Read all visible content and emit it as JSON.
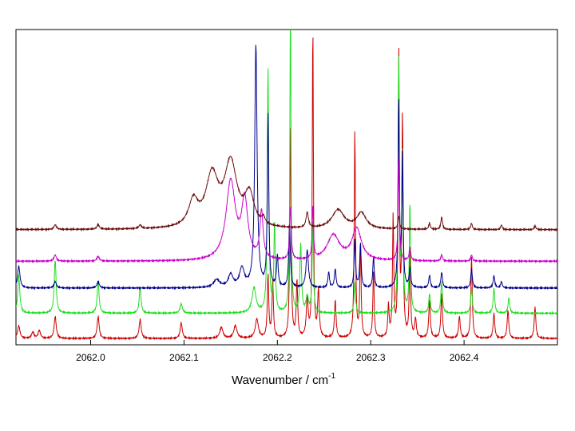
{
  "chart_data": {
    "type": "line",
    "title": "",
    "xlabel": "Wavenumber / cm",
    "xlabel_superscript": "-1",
    "ylabel": "",
    "xlim": [
      2061.92,
      2062.5
    ],
    "ylim": [
      0,
      1
    ],
    "xticks": [
      2062.0,
      2062.1,
      2062.2,
      2062.3,
      2062.4
    ],
    "xtick_labels": [
      "2062.0",
      "2062.1",
      "2062.2",
      "2062.3",
      "2062.4"
    ],
    "grid": false,
    "legend": "none",
    "series": [
      {
        "color": "#cc0000",
        "baseline": 0.02,
        "peaks": [
          [
            2061.923,
            0.04,
            0.0015
          ],
          [
            2061.938,
            0.02,
            0.0015
          ],
          [
            2061.945,
            0.025,
            0.0015
          ],
          [
            2061.962,
            0.07,
            0.0013
          ],
          [
            2062.008,
            0.07,
            0.0013
          ],
          [
            2062.053,
            0.06,
            0.0013
          ],
          [
            2062.097,
            0.05,
            0.0013
          ],
          [
            2062.14,
            0.035,
            0.002
          ],
          [
            2062.155,
            0.04,
            0.002
          ],
          [
            2062.178,
            0.06,
            0.002
          ],
          [
            2062.19,
            0.2,
            0.0009
          ],
          [
            2062.195,
            0.18,
            0.0009
          ],
          [
            2062.214,
            0.68,
            0.0008
          ],
          [
            2062.221,
            0.18,
            0.0009
          ],
          [
            2062.232,
            0.12,
            0.0012
          ],
          [
            2062.238,
            1.0,
            0.0007
          ],
          [
            2062.244,
            0.15,
            0.001
          ],
          [
            2062.262,
            0.12,
            0.001
          ],
          [
            2062.283,
            0.66,
            0.0008
          ],
          [
            2062.289,
            0.3,
            0.0008
          ],
          [
            2062.303,
            0.22,
            0.0008
          ],
          [
            2062.319,
            0.1,
            0.0008
          ],
          [
            2062.324,
            0.38,
            0.0008
          ],
          [
            2062.33,
            0.92,
            0.0007
          ],
          [
            2062.334,
            0.7,
            0.0008
          ],
          [
            2062.342,
            0.28,
            0.0008
          ],
          [
            2062.348,
            0.06,
            0.001
          ],
          [
            2062.363,
            0.12,
            0.001
          ],
          [
            2062.376,
            0.14,
            0.001
          ],
          [
            2062.395,
            0.07,
            0.001
          ],
          [
            2062.408,
            0.26,
            0.0009
          ],
          [
            2062.432,
            0.08,
            0.001
          ],
          [
            2062.447,
            0.09,
            0.001
          ],
          [
            2062.476,
            0.1,
            0.001
          ]
        ]
      },
      {
        "color": "#22dd22",
        "baseline": 0.1,
        "peaks": [
          [
            2061.923,
            0.12,
            0.0013
          ],
          [
            2061.962,
            0.17,
            0.0012
          ],
          [
            2062.008,
            0.1,
            0.0012
          ],
          [
            2062.053,
            0.08,
            0.0012
          ],
          [
            2062.097,
            0.03,
            0.0015
          ],
          [
            2062.175,
            0.08,
            0.0025
          ],
          [
            2062.19,
            0.78,
            0.0009
          ],
          [
            2062.197,
            0.28,
            0.0009
          ],
          [
            2062.214,
            1.0,
            0.0007
          ],
          [
            2062.225,
            0.22,
            0.001
          ],
          [
            2062.232,
            0.05,
            0.0015
          ],
          [
            2062.238,
            0.3,
            0.0008
          ],
          [
            2062.283,
            0.1,
            0.0009
          ],
          [
            2062.33,
            0.82,
            0.0008
          ],
          [
            2062.334,
            0.5,
            0.0008
          ],
          [
            2062.342,
            0.35,
            0.0008
          ],
          [
            2062.363,
            0.06,
            0.001
          ],
          [
            2062.376,
            0.1,
            0.001
          ],
          [
            2062.408,
            0.08,
            0.001
          ],
          [
            2062.432,
            0.08,
            0.001
          ],
          [
            2062.448,
            0.05,
            0.001
          ]
        ]
      },
      {
        "color": "#00008b",
        "baseline": 0.18,
        "peaks": [
          [
            2061.923,
            0.07,
            0.0015
          ],
          [
            2061.962,
            0.02,
            0.0015
          ],
          [
            2062.008,
            0.02,
            0.0015
          ],
          [
            2062.135,
            0.025,
            0.004
          ],
          [
            2062.15,
            0.04,
            0.003
          ],
          [
            2062.162,
            0.06,
            0.003
          ],
          [
            2062.177,
            0.77,
            0.0015
          ],
          [
            2062.19,
            0.55,
            0.0009
          ],
          [
            2062.2,
            0.1,
            0.001
          ],
          [
            2062.213,
            0.2,
            0.001
          ],
          [
            2062.232,
            0.12,
            0.0015
          ],
          [
            2062.255,
            0.05,
            0.001
          ],
          [
            2062.262,
            0.06,
            0.001
          ],
          [
            2062.283,
            0.15,
            0.0009
          ],
          [
            2062.289,
            0.14,
            0.0009
          ],
          [
            2062.303,
            0.1,
            0.0009
          ],
          [
            2062.33,
            0.6,
            0.0008
          ],
          [
            2062.334,
            0.42,
            0.0008
          ],
          [
            2062.342,
            0.06,
            0.001
          ],
          [
            2062.363,
            0.04,
            0.001
          ],
          [
            2062.376,
            0.05,
            0.001
          ],
          [
            2062.408,
            0.06,
            0.001
          ],
          [
            2062.432,
            0.04,
            0.001
          ],
          [
            2062.44,
            0.02,
            0.001
          ]
        ]
      },
      {
        "color": "#cc00cc",
        "baseline": 0.265,
        "peaks": [
          [
            2061.962,
            0.02,
            0.0015
          ],
          [
            2062.008,
            0.015,
            0.0015
          ],
          [
            2062.15,
            0.25,
            0.006
          ],
          [
            2062.165,
            0.18,
            0.004
          ],
          [
            2062.183,
            0.15,
            0.002
          ],
          [
            2062.214,
            0.17,
            0.001
          ],
          [
            2062.238,
            0.17,
            0.0008
          ],
          [
            2062.26,
            0.08,
            0.008
          ],
          [
            2062.285,
            0.1,
            0.006
          ],
          [
            2062.33,
            0.33,
            0.0008
          ],
          [
            2062.342,
            0.04,
            0.001
          ],
          [
            2062.376,
            0.02,
            0.001
          ],
          [
            2062.408,
            0.02,
            0.001
          ]
        ]
      },
      {
        "color": "#6b0f0f",
        "baseline": 0.365,
        "peaks": [
          [
            2061.962,
            0.015,
            0.0015
          ],
          [
            2062.008,
            0.015,
            0.0015
          ],
          [
            2062.053,
            0.012,
            0.0015
          ],
          [
            2062.11,
            0.08,
            0.006
          ],
          [
            2062.13,
            0.16,
            0.008
          ],
          [
            2062.15,
            0.2,
            0.008
          ],
          [
            2062.17,
            0.1,
            0.006
          ],
          [
            2062.185,
            0.02,
            0.002
          ],
          [
            2062.232,
            0.05,
            0.0015
          ],
          [
            2062.265,
            0.06,
            0.008
          ],
          [
            2062.29,
            0.05,
            0.006
          ],
          [
            2062.33,
            0.04,
            0.001
          ],
          [
            2062.363,
            0.02,
            0.001
          ],
          [
            2062.376,
            0.04,
            0.001
          ],
          [
            2062.408,
            0.02,
            0.001
          ],
          [
            2062.44,
            0.015,
            0.001
          ],
          [
            2062.476,
            0.012,
            0.001
          ]
        ]
      }
    ]
  }
}
